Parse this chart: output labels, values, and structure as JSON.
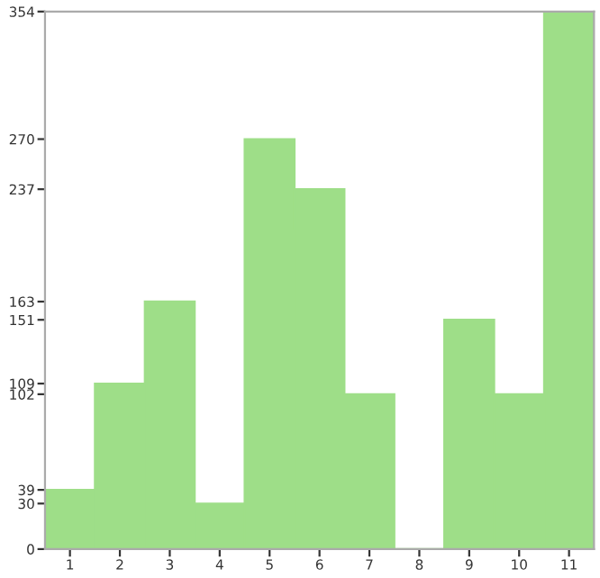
{
  "chart_data": {
    "type": "bar",
    "categories": [
      "1",
      "2",
      "3",
      "4",
      "5",
      "6",
      "7",
      "8",
      "9",
      "10",
      "11"
    ],
    "values": [
      39,
      109,
      163,
      30,
      270,
      237,
      102,
      0,
      151,
      102,
      354
    ],
    "color": "#9ede88",
    "ylim": [
      0,
      354
    ],
    "yticks": [
      0,
      30,
      39,
      102,
      109,
      151,
      163,
      237,
      270,
      354
    ],
    "grid": false
  }
}
